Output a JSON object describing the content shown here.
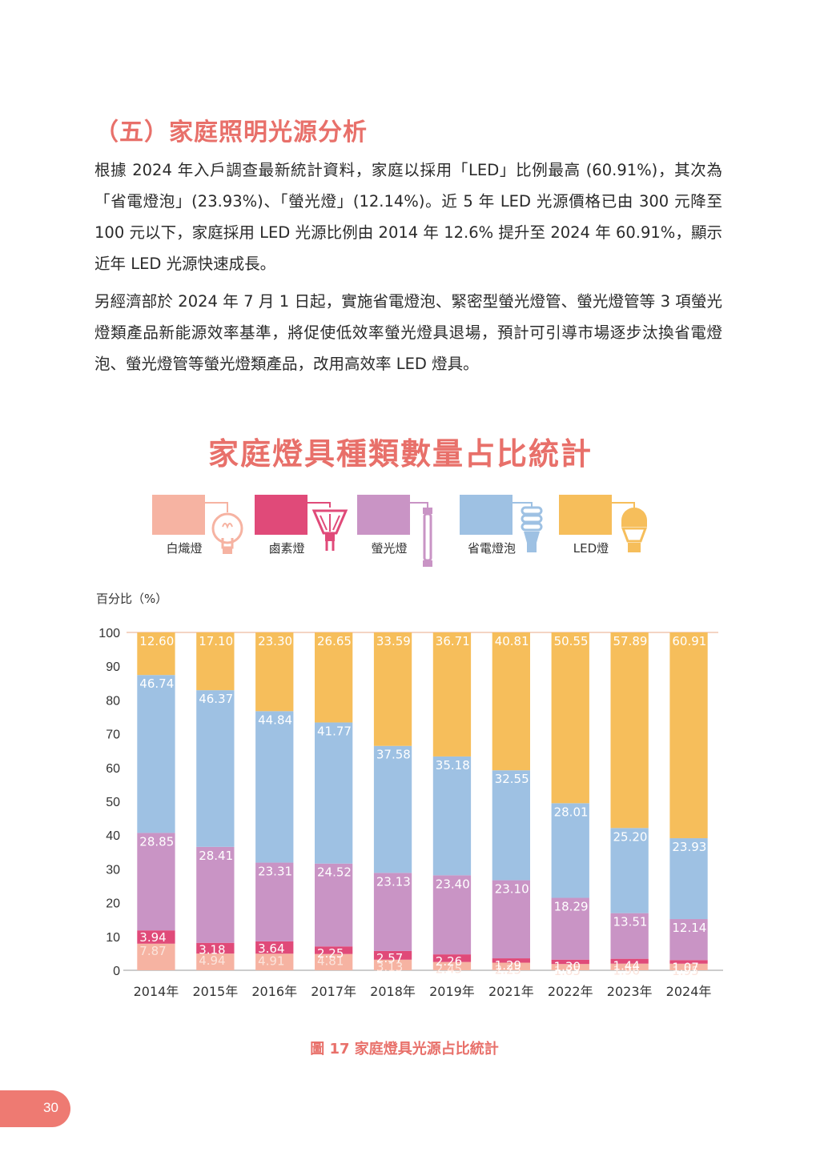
{
  "section": {
    "title": "（五）家庭照明光源分析"
  },
  "paragraphs": [
    "根據 2024 年入戶調查最新統計資料，家庭以採用「LED」比例最高 (60.91%)，其次為「省電燈泡」(23.93%)、「螢光燈」(12.14%)。近 5 年 LED 光源價格已由 300 元降至 100 元以下，家庭採用 LED 光源比例由 2014 年 12.6% 提升至 2024 年 60.91%，顯示近年 LED 光源快速成長。",
    "另經濟部於 2024 年 7 月 1 日起，實施省電燈泡、緊密型螢光燈管、螢光燈管等 3 項螢光燈類產品新能源效率基準，將促使低效率螢光燈具退場，預計可引導市場逐步汰換省電燈泡、螢光燈管等螢光燈類產品，改用高效率 LED 燈具。"
  ],
  "legend": [
    {
      "label": "白熾燈",
      "color": "#f6b3a2",
      "icon": "incandescent-bulb-icon"
    },
    {
      "label": "鹵素燈",
      "color": "#e04a79",
      "icon": "halogen-lamp-icon"
    },
    {
      "label": "螢光燈",
      "color": "#c994c5",
      "icon": "fluorescent-tube-icon"
    },
    {
      "label": "省電燈泡",
      "color": "#9ec1e3",
      "icon": "cfl-bulb-icon"
    },
    {
      "label": "LED燈",
      "color": "#f6be5b",
      "icon": "led-bulb-icon"
    }
  ],
  "chart_data": {
    "type": "bar",
    "stacked": true,
    "title": "家庭燈具種類數量占比統計",
    "ylabel": "百分比（%）",
    "xlabel": "",
    "ylim": [
      0,
      100
    ],
    "yticks": [
      0,
      10,
      20,
      30,
      40,
      50,
      60,
      70,
      80,
      90,
      100
    ],
    "grid": false,
    "legend_position": "top",
    "categories": [
      "2014年",
      "2015年",
      "2016年",
      "2017年",
      "2018年",
      "2019年",
      "2021年",
      "2022年",
      "2023年",
      "2024年"
    ],
    "series": [
      {
        "name": "白熾燈",
        "color": "#f6b3a2",
        "values": [
          7.87,
          4.94,
          4.91,
          4.81,
          3.13,
          2.45,
          2.25,
          1.85,
          1.96,
          1.95
        ]
      },
      {
        "name": "鹵素燈",
        "color": "#e04a79",
        "values": [
          3.94,
          3.18,
          3.64,
          2.25,
          2.57,
          2.26,
          1.29,
          1.3,
          1.44,
          1.07
        ]
      },
      {
        "name": "螢光燈",
        "color": "#c994c5",
        "values": [
          28.85,
          28.41,
          23.31,
          24.52,
          23.13,
          23.4,
          23.1,
          18.29,
          13.51,
          12.14
        ]
      },
      {
        "name": "省電燈泡",
        "color": "#9ec1e3",
        "values": [
          46.74,
          46.37,
          44.84,
          41.77,
          37.58,
          35.18,
          32.55,
          28.01,
          25.2,
          23.93
        ]
      },
      {
        "name": "LED燈",
        "color": "#f6be5b",
        "values": [
          12.6,
          17.1,
          23.3,
          26.65,
          33.59,
          36.71,
          40.81,
          50.55,
          57.89,
          60.91
        ]
      }
    ]
  },
  "caption": "圖 17 家庭燈具光源占比統計",
  "page": {
    "number": "30"
  }
}
